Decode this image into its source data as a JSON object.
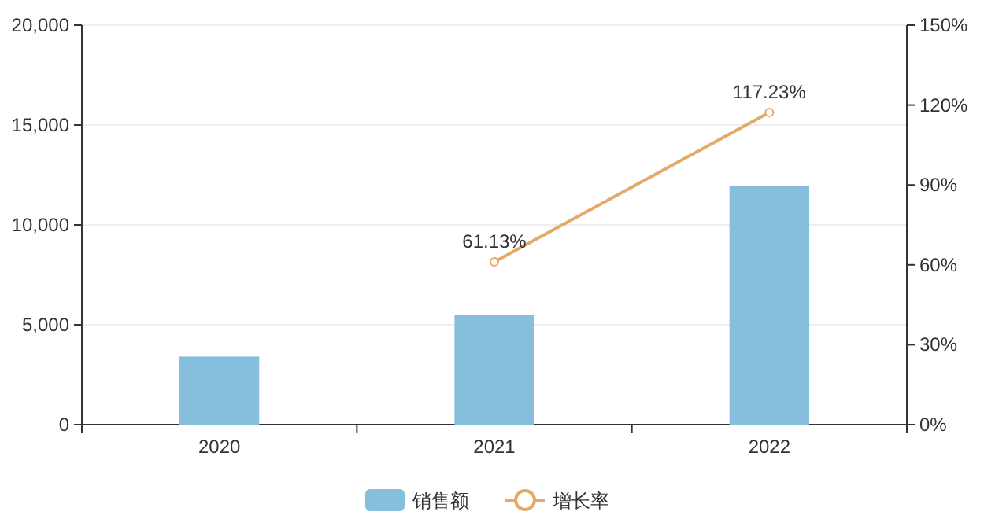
{
  "chart_data": {
    "type": "bar",
    "categories": [
      "2020",
      "2021",
      "2022"
    ],
    "series": [
      {
        "name": "销售额",
        "color": "#86bfdc",
        "values": [
          3410,
          5490,
          11930
        ]
      },
      {
        "name": "增长率",
        "type": "line",
        "axis": "y2",
        "color": "#e5a96a",
        "values": [
          null,
          61.13,
          117.23
        ],
        "value_labels": [
          null,
          "61.13%",
          "117.23%"
        ]
      }
    ],
    "ylim": [
      0,
      20000
    ],
    "yticks": [
      {
        "value": 0,
        "label": "0"
      },
      {
        "value": 5000,
        "label": "5,000"
      },
      {
        "value": 10000,
        "label": "10,000"
      },
      {
        "value": 15000,
        "label": "15,000"
      },
      {
        "value": 20000,
        "label": "20,000"
      }
    ],
    "y2lim": [
      0,
      150
    ],
    "y2ticks": [
      {
        "value": 0,
        "label": "0%"
      },
      {
        "value": 30,
        "label": "30%"
      },
      {
        "value": 60,
        "label": "60%"
      },
      {
        "value": 90,
        "label": "90%"
      },
      {
        "value": 120,
        "label": "120%"
      },
      {
        "value": 150,
        "label": "150%"
      }
    ],
    "grid": "y",
    "legend": "bottom",
    "marker": "circle"
  }
}
